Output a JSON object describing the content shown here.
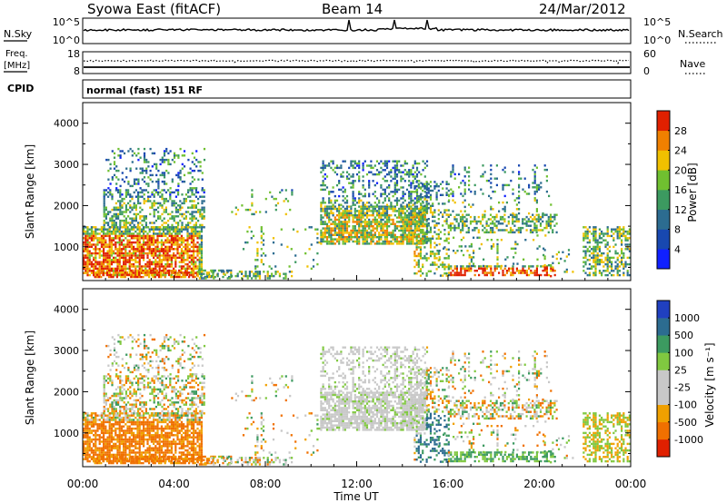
{
  "header": {
    "title": "Syowa East (fitACF)",
    "beam": "Beam 14",
    "date": "24/Mar/2012"
  },
  "noise_panel": {
    "left_label": "N.Sky",
    "left_ticks": [
      "10^5",
      "10^0"
    ],
    "right_label": "N.Search",
    "right_ticks": [
      "10^5",
      "10^0"
    ]
  },
  "freq_panel": {
    "left_label_1": "Freq.",
    "left_label_2": "[MHz]",
    "left_ticks": [
      "18",
      "8"
    ],
    "right_label": "Nave",
    "right_ticks": [
      "60",
      "0"
    ]
  },
  "cpid": {
    "label": "CPID",
    "mode": "normal (fast) 151 RF"
  },
  "chart_data": [
    {
      "type": "heatmap",
      "ylabel": "Slant Range [km]",
      "ylim": [
        180,
        4500
      ],
      "yticks": [
        "1000",
        "2000",
        "3000",
        "4000"
      ],
      "xlim": [
        0,
        24
      ],
      "colorbar_label": "Power [dB]",
      "colorbar_ticks": [
        "4",
        "8",
        "12",
        "16",
        "20",
        "24",
        "28"
      ],
      "colors": [
        "#1020ff",
        "#1848b0",
        "#2c6c90",
        "#3c9a60",
        "#70c030",
        "#f0c000",
        "#f08000",
        "#e02000"
      ]
    },
    {
      "type": "heatmap",
      "ylabel": "Slant Range [km]",
      "ylim": [
        180,
        4500
      ],
      "yticks": [
        "1000",
        "2000",
        "3000",
        "4000"
      ],
      "xlim": [
        0,
        24
      ],
      "colorbar_label": "Velocity [m s⁻¹]",
      "colorbar_ticks": [
        "1000",
        "500",
        "100",
        "25",
        "-25",
        "-100",
        "-500",
        "-1000"
      ],
      "colors": [
        "#2040c0",
        "#2c6c90",
        "#3c9a60",
        "#80c840",
        "#c8c8c8",
        "#c8c8c8",
        "#f0a000",
        "#f07000",
        "#e02000"
      ]
    }
  ],
  "xaxis": {
    "ticks": [
      "00:00",
      "04:00",
      "08:00",
      "12:00",
      "16:00",
      "20:00",
      "00:00"
    ],
    "label": "Time UT"
  }
}
